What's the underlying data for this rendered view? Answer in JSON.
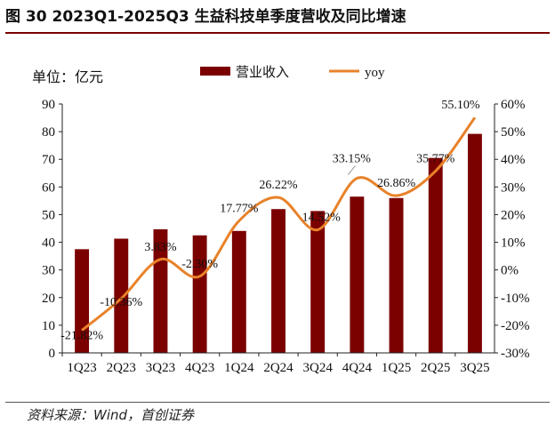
{
  "figure": {
    "title": "图  30 2023Q1-2025Q3 生益科技单季度营收及同比增速",
    "source": "资料来源：Wind，首创证券"
  },
  "colors": {
    "bar": "#7b0000",
    "line": "#e8822a",
    "rule": "#7b0000"
  },
  "chart_data": {
    "type": "bar",
    "categories": [
      "1Q23",
      "2Q23",
      "3Q23",
      "4Q23",
      "1Q24",
      "2Q24",
      "3Q24",
      "4Q24",
      "1Q25",
      "2Q25",
      "3Q25"
    ],
    "unit_label": "单位：亿元",
    "series": [
      {
        "name": "营业收入",
        "type": "bar",
        "axis": "left",
        "values": [
          37.5,
          41.3,
          44.7,
          42.5,
          44.1,
          52.0,
          51.3,
          56.5,
          56.0,
          70.5,
          79.2
        ]
      },
      {
        "name": "yoy",
        "type": "line",
        "axis": "right",
        "values": [
          -21.82,
          -10.36,
          3.83,
          -2.3,
          17.77,
          26.22,
          14.52,
          33.15,
          26.86,
          35.77,
          55.1
        ],
        "labels": [
          "-21.82%",
          "-10.36%",
          "3.83%",
          "-2.30%",
          "17.77%",
          "26.22%",
          "14.52%",
          "33.15%",
          "26.86%",
          "35.77%",
          "55.10%"
        ]
      }
    ],
    "y_left": {
      "min": 0,
      "max": 90,
      "step": 10,
      "tick_labels": [
        "0",
        "10",
        "20",
        "30",
        "40",
        "50",
        "60",
        "70",
        "80",
        "90"
      ]
    },
    "y_right": {
      "min": -30,
      "max": 60,
      "step": 10,
      "tick_labels": [
        "-30%",
        "-20%",
        "-10%",
        "0%",
        "10%",
        "20%",
        "30%",
        "40%",
        "50%",
        "60%"
      ]
    },
    "grid": false,
    "legend_position": "top-center"
  }
}
